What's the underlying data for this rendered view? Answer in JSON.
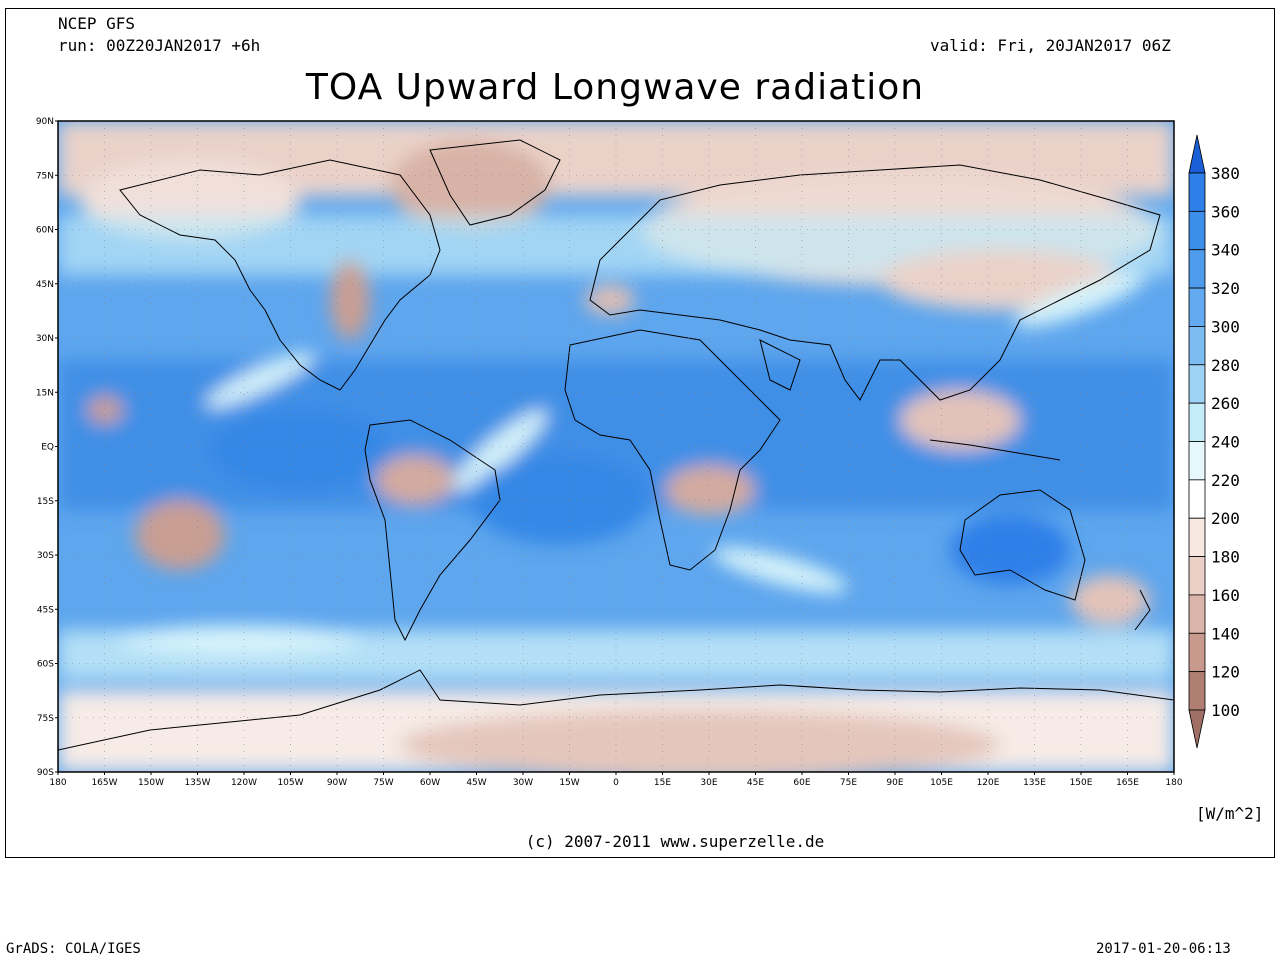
{
  "header": {
    "source": "NCEP GFS",
    "run": "run: 00Z20JAN2017 +6h",
    "valid": "valid: Fri, 20JAN2017 06Z",
    "title": "TOA Upward Longwave radiation"
  },
  "axes": {
    "lat_labels": [
      "90N",
      "75N",
      "60N",
      "45N",
      "30N",
      "15N",
      "EQ",
      "15S",
      "30S",
      "45S",
      "60S",
      "75S",
      "90S"
    ],
    "lon_labels": [
      "180",
      "165W",
      "150W",
      "135W",
      "120W",
      "105W",
      "90W",
      "75W",
      "60W",
      "45W",
      "30W",
      "15W",
      "0",
      "15E",
      "30E",
      "45E",
      "60E",
      "75E",
      "90E",
      "105E",
      "120E",
      "135E",
      "150E",
      "165E",
      "180"
    ]
  },
  "colorbar": {
    "labels": [
      "380",
      "360",
      "340",
      "320",
      "300",
      "280",
      "260",
      "240",
      "220",
      "200",
      "180",
      "160",
      "140",
      "120",
      "100"
    ],
    "unit": "[W/m^2]",
    "colors": [
      "#1e6ee0",
      "#2f7fe8",
      "#3d8ee8",
      "#4f9cec",
      "#63aaf0",
      "#7dbcf2",
      "#9ed3f5",
      "#c4ecf8",
      "#e6f8fb",
      "#ffffff",
      "#f7e8e2",
      "#ebd0c8",
      "#dab5aa",
      "#c89a8e",
      "#b07f74"
    ]
  },
  "footer": {
    "copyright": "(c) 2007-2011 www.superzelle.de",
    "software": "GrADS: COLA/IGES",
    "timestamp": "2017-01-20-06:13"
  }
}
